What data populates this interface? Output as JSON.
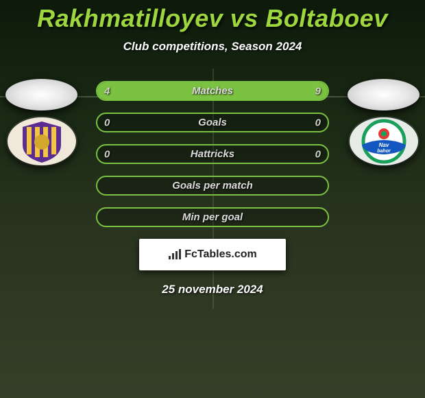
{
  "title": "Rakhmatilloyev vs Boltaboev",
  "subtitle": "Club competitions, Season 2024",
  "date": "25 november 2024",
  "brand": "FcTables.com",
  "colors": {
    "accent": "#9dd63d",
    "bar_border": "#7cc242",
    "bar_fill": "#7cc242",
    "text_light": "#dcdcdc",
    "white": "#ffffff"
  },
  "players": {
    "left": {
      "name": "Rakhmatilloyev",
      "club_colors": {
        "stripes": [
          "#5c2d91",
          "#f4c542"
        ],
        "base": "#f0e8d8"
      }
    },
    "right": {
      "name": "Boltaboev",
      "club_colors": {
        "ring": "#1aa05a",
        "ribbon": "#1557c0",
        "base": "#e8ece8"
      }
    }
  },
  "stats": [
    {
      "label": "Matches",
      "left_value": "4",
      "right_value": "9",
      "left_pct": 31,
      "right_pct": 69
    },
    {
      "label": "Goals",
      "left_value": "0",
      "right_value": "0",
      "left_pct": 0,
      "right_pct": 0
    },
    {
      "label": "Hattricks",
      "left_value": "0",
      "right_value": "0",
      "left_pct": 0,
      "right_pct": 0
    },
    {
      "label": "Goals per match",
      "left_value": "",
      "right_value": "",
      "left_pct": 0,
      "right_pct": 0
    },
    {
      "label": "Min per goal",
      "left_value": "",
      "right_value": "",
      "left_pct": 0,
      "right_pct": 0
    }
  ]
}
